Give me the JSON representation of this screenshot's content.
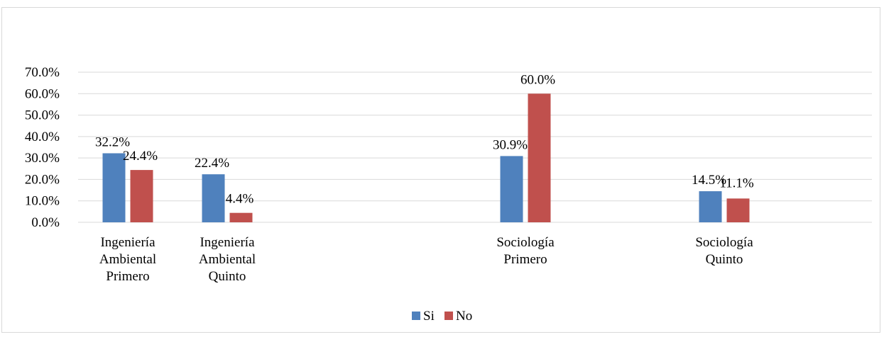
{
  "chart_data": {
    "type": "bar",
    "categories": [
      [
        "Ingeniería",
        "Ambiental",
        "Primero"
      ],
      [
        "Ingeniería",
        "Ambiental",
        "Quinto"
      ],
      [
        "Sociología",
        "Primero"
      ],
      [
        "Sociología",
        "Quinto"
      ]
    ],
    "series": [
      {
        "name": "Si",
        "color": "#4f81bd",
        "values": [
          32.2,
          22.4,
          30.9,
          14.5
        ],
        "labels": [
          "32.2%",
          "22.4%",
          "30.9%",
          "14.5%"
        ]
      },
      {
        "name": "No",
        "color": "#c0504d",
        "values": [
          24.4,
          4.4,
          60.0,
          11.1
        ],
        "labels": [
          "24.4%",
          "4.4%",
          "60.0%",
          "11.1%"
        ]
      }
    ],
    "y_ticks": [
      "0.0%",
      "10.0%",
      "20.0%",
      "30.0%",
      "40.0%",
      "50.0%",
      "60.0%",
      "70.0%"
    ],
    "ylim": [
      0,
      70
    ],
    "grid": true,
    "legend_position": "bottom",
    "title": "",
    "xlabel": "",
    "ylabel": ""
  }
}
